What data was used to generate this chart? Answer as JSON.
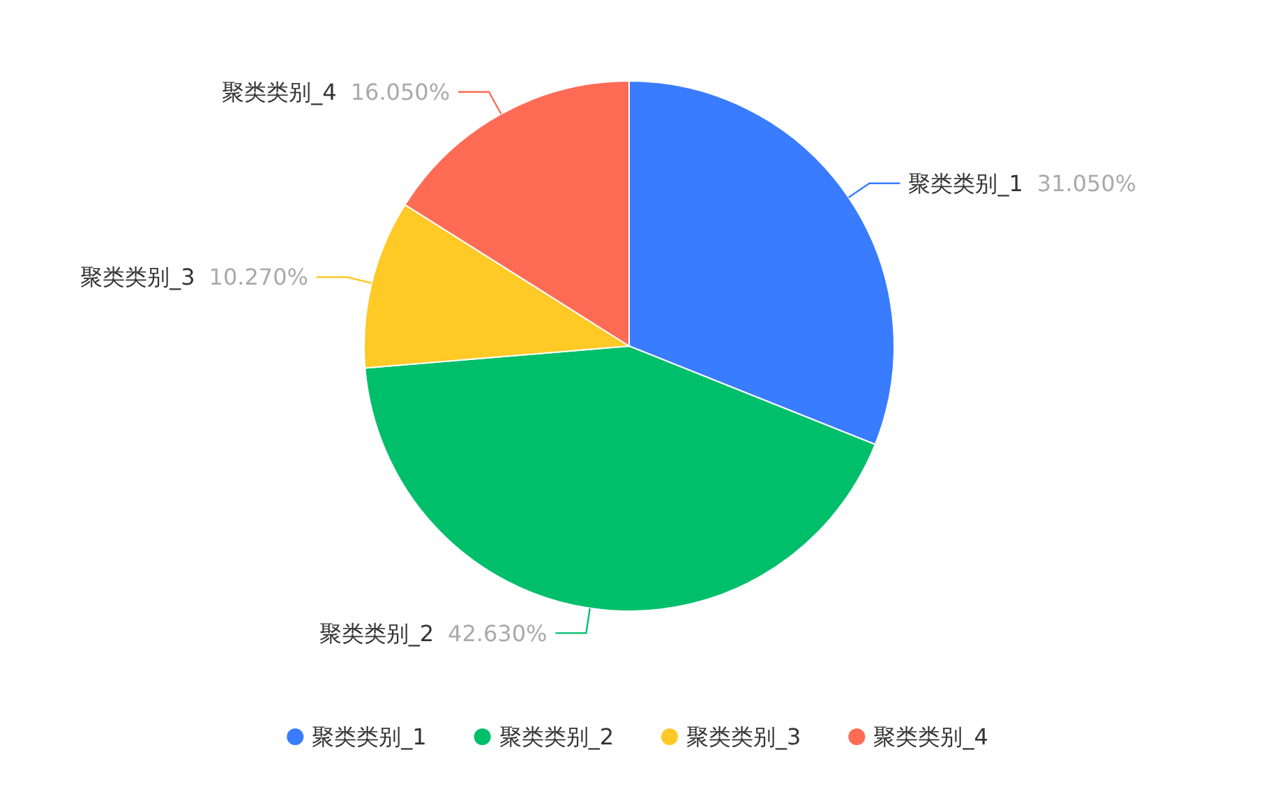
{
  "chart_data": {
    "type": "pie",
    "categories": [
      "聚类类别_1",
      "聚类类别_2",
      "聚类类别_3",
      "聚类类别_4"
    ],
    "values": [
      31.05,
      42.63,
      10.27,
      16.05
    ],
    "value_labels": [
      "31.050%",
      "42.630%",
      "10.270%",
      "16.050%"
    ],
    "colors": [
      "#3a7cff",
      "#00bf6b",
      "#ffc926",
      "#ff6b55"
    ],
    "legend": "bottom"
  }
}
